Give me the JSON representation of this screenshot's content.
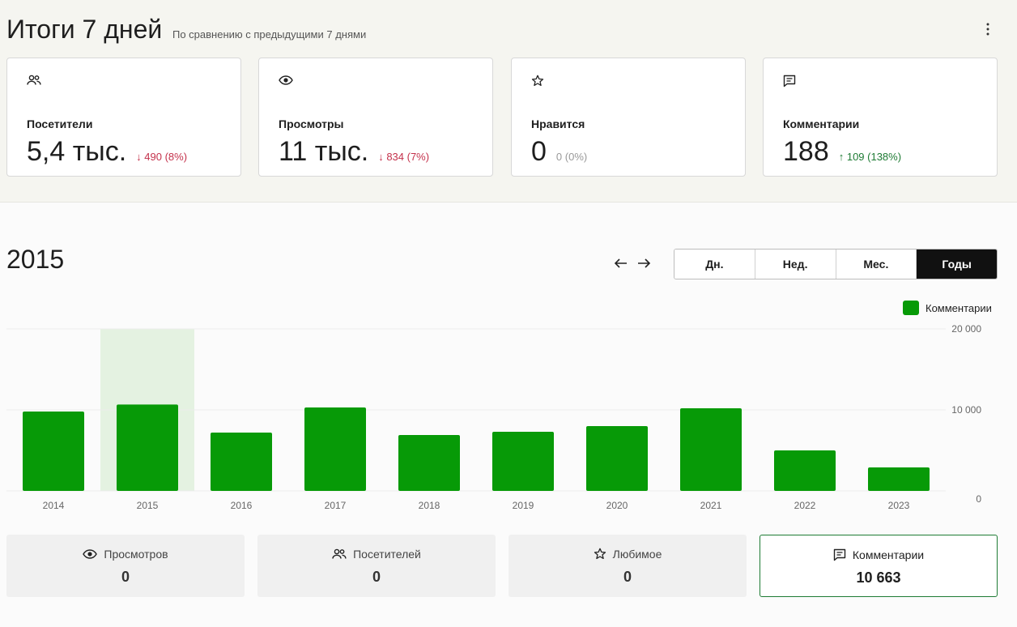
{
  "header": {
    "title": "Итоги 7 дней",
    "subtitle": "По сравнению с предыдущими 7 днями",
    "more_icon": "more-vertical-icon"
  },
  "cards": [
    {
      "icon": "people-icon",
      "label": "Посетители",
      "value": "5,4 тыс.",
      "delta": "↓ 490 (8%)",
      "trend": "down"
    },
    {
      "icon": "eye-icon",
      "label": "Просмотры",
      "value": "11 тыс.",
      "delta": "↓ 834 (7%)",
      "trend": "down"
    },
    {
      "icon": "star-icon",
      "label": "Нравится",
      "value": "0",
      "delta": "0 (0%)",
      "trend": "zero"
    },
    {
      "icon": "comment-icon",
      "label": "Комментарии",
      "value": "188",
      "delta": "↑ 109 (138%)",
      "trend": "up"
    }
  ],
  "period": {
    "selected_year": "2015",
    "prev_icon": "arrow-left-icon",
    "next_icon": "arrow-right-icon",
    "tabs": [
      {
        "label": "Дн.",
        "active": false
      },
      {
        "label": "Нед.",
        "active": false
      },
      {
        "label": "Мес.",
        "active": false
      },
      {
        "label": "Годы",
        "active": true
      }
    ]
  },
  "colors": {
    "bar": "#079a07",
    "highlight": "#e4f2e1",
    "up": "#1e7b34",
    "down": "#c4314b"
  },
  "chart_data": {
    "type": "bar",
    "categories": [
      "2014",
      "2015",
      "2016",
      "2017",
      "2018",
      "2019",
      "2020",
      "2021",
      "2022",
      "2023"
    ],
    "series": [
      {
        "name": "Комментарии",
        "values": [
          9800,
          10663,
          7200,
          10300,
          6900,
          7300,
          8000,
          10200,
          5000,
          2900
        ]
      }
    ],
    "highlighted_category": "2015",
    "y_ticks": [
      "0",
      "10 000",
      "20 000"
    ],
    "ylim": [
      0,
      20000
    ],
    "grid": true,
    "legend_position": "top-right"
  },
  "tiles": [
    {
      "icon": "eye-icon",
      "label": "Просмотров",
      "value": "0",
      "active": false
    },
    {
      "icon": "people-icon",
      "label": "Посетителей",
      "value": "0",
      "active": false
    },
    {
      "icon": "star-icon",
      "label": "Любимое",
      "value": "0",
      "active": false
    },
    {
      "icon": "comment-icon",
      "label": "Комментарии",
      "value": "10 663",
      "active": true
    }
  ]
}
